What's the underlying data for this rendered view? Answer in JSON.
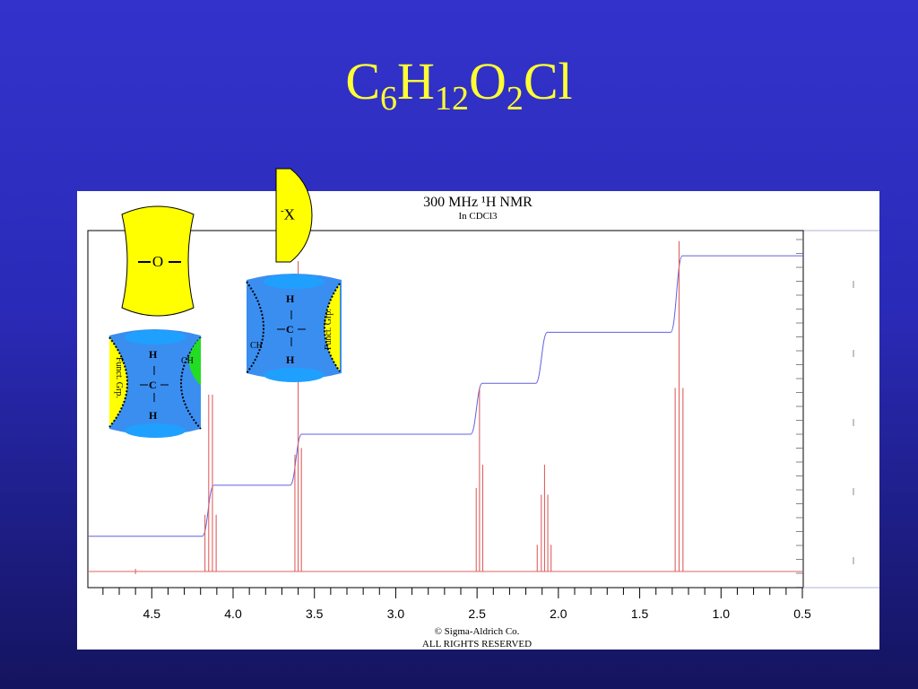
{
  "slide": {
    "title_parts": [
      "C",
      "6",
      "H",
      "12",
      "O",
      "2",
      "Cl"
    ]
  },
  "nmr": {
    "heading": "300 MHz ¹H NMR",
    "solvent": "In CDCl3",
    "copyright_line1": "© Sigma-Aldrich Co.",
    "copyright_line2": "ALL RIGHTS RESERVED"
  },
  "callouts": {
    "ether_label": "O",
    "halide_label": "X",
    "halide_charge": "-",
    "left_h_top": "H",
    "left_c": "C",
    "left_h_bottom": "H",
    "left_funct": "Funct. Grp.",
    "left_ch": "CH",
    "right_h_top": "H",
    "right_c": "C",
    "right_h_bottom": "H",
    "right_funct": "Funct. Grp.",
    "right_ch": "CH"
  },
  "colors": {
    "background_top": "#3333cc",
    "background_bottom": "#14145f",
    "title": "#ffff33",
    "spectrum": "#e06060",
    "integral": "#6060e0",
    "callout_yellow": "#ffff00",
    "callout_blue": "#3a8ef0",
    "callout_green": "#22dd22"
  },
  "chart_data": {
    "type": "line",
    "title": "300 MHz ¹H NMR",
    "subtitle": "In CDCl3",
    "xlabel": "",
    "ylabel": "",
    "xlim": [
      4.9,
      0.5
    ],
    "x_reversed": true,
    "x_ticks": [
      "4.5",
      "4.0",
      "3.5",
      "3.0",
      "2.5",
      "2.0",
      "1.5",
      "1.0",
      "0.5"
    ],
    "grid": false,
    "peaks": [
      {
        "shift": 4.173,
        "height": 0.17
      },
      {
        "shift": 4.15,
        "height": 0.53
      },
      {
        "shift": 4.127,
        "height": 0.53
      },
      {
        "shift": 4.104,
        "height": 0.17
      },
      {
        "shift": 3.62,
        "height": 0.35
      },
      {
        "shift": 3.6,
        "height": 0.93
      },
      {
        "shift": 3.58,
        "height": 0.37
      },
      {
        "shift": 2.505,
        "height": 0.25
      },
      {
        "shift": 2.485,
        "height": 0.55
      },
      {
        "shift": 2.465,
        "height": 0.32
      },
      {
        "shift": 2.13,
        "height": 0.08
      },
      {
        "shift": 2.105,
        "height": 0.23
      },
      {
        "shift": 2.085,
        "height": 0.32
      },
      {
        "shift": 2.065,
        "height": 0.23
      },
      {
        "shift": 2.045,
        "height": 0.08
      },
      {
        "shift": 1.282,
        "height": 0.55
      },
      {
        "shift": 1.258,
        "height": 0.99
      },
      {
        "shift": 1.234,
        "height": 0.55
      }
    ],
    "integral_steps": [
      {
        "shift": 4.14,
        "start": 0.05,
        "end": 0.19
      },
      {
        "shift": 3.6,
        "start": 0.19,
        "end": 0.33
      },
      {
        "shift": 2.49,
        "start": 0.33,
        "end": 0.47
      },
      {
        "shift": 2.09,
        "start": 0.47,
        "end": 0.61
      },
      {
        "shift": 1.26,
        "start": 0.61,
        "end": 0.82
      }
    ]
  }
}
